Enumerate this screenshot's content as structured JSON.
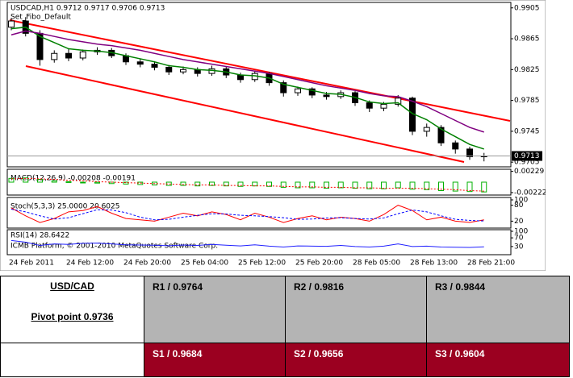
{
  "chart_data": [
    {
      "type": "candlestick",
      "title": "USDCAD,H1  0.9712 0.9717 0.9706 0.9713",
      "subtitle": "Set_Fibo_Default",
      "categories": [
        "24 Feb 2011",
        null,
        null,
        null,
        "24 Feb 12:00",
        null,
        null,
        null,
        "24 Feb 20:00",
        null,
        null,
        null,
        "25 Feb 04:00",
        null,
        null,
        null,
        "25 Feb 12:00",
        null,
        null,
        null,
        "25 Feb 20:00",
        null,
        null,
        null,
        "28 Feb 05:00",
        null,
        null,
        null,
        "28 Feb 13:00",
        null,
        null,
        null,
        "28 Feb 21:00",
        null
      ],
      "open": [
        0.988,
        0.9888,
        0.9872,
        0.9838,
        0.9846,
        0.984,
        0.9848,
        0.985,
        0.9843,
        0.9835,
        0.9832,
        0.9828,
        0.9822,
        0.9825,
        0.982,
        0.9826,
        0.9818,
        0.9812,
        0.982,
        0.9808,
        0.9795,
        0.98,
        0.9792,
        0.979,
        0.9795,
        0.9782,
        0.9775,
        0.978,
        0.9788,
        0.9745,
        0.975,
        0.973,
        0.9722,
        0.9712
      ],
      "high": [
        0.9892,
        0.9893,
        0.9876,
        0.985,
        0.9852,
        0.9851,
        0.9854,
        0.9853,
        0.9846,
        0.9839,
        0.9836,
        0.9831,
        0.9829,
        0.9828,
        0.983,
        0.9829,
        0.9821,
        0.9823,
        0.9822,
        0.9811,
        0.9803,
        0.9802,
        0.9796,
        0.9798,
        0.9797,
        0.9785,
        0.9783,
        0.9792,
        0.979,
        0.9755,
        0.9753,
        0.9733,
        0.9725,
        0.9717
      ],
      "low": [
        0.9876,
        0.9868,
        0.983,
        0.9834,
        0.9836,
        0.9837,
        0.9844,
        0.984,
        0.9831,
        0.9828,
        0.9824,
        0.9818,
        0.9819,
        0.9816,
        0.9817,
        0.9814,
        0.9808,
        0.9809,
        0.9804,
        0.979,
        0.9791,
        0.9788,
        0.9786,
        0.9787,
        0.9778,
        0.977,
        0.9771,
        0.9777,
        0.974,
        0.9738,
        0.9726,
        0.9716,
        0.9708,
        0.9706
      ],
      "close": [
        0.9888,
        0.9872,
        0.9838,
        0.9846,
        0.984,
        0.9848,
        0.985,
        0.9843,
        0.9835,
        0.9832,
        0.9828,
        0.9822,
        0.9825,
        0.982,
        0.9826,
        0.9818,
        0.9812,
        0.982,
        0.9808,
        0.9795,
        0.98,
        0.9792,
        0.979,
        0.9795,
        0.9782,
        0.9775,
        0.978,
        0.9788,
        0.9745,
        0.975,
        0.973,
        0.9722,
        0.9712,
        0.9713
      ],
      "overlays": [
        {
          "color": "#008000",
          "values": [
            0.9878,
            0.988,
            0.9868,
            0.986,
            0.9852,
            0.985,
            0.9849,
            0.9847,
            0.9843,
            0.9839,
            0.9835,
            0.983,
            0.9828,
            0.9825,
            0.9824,
            0.9822,
            0.9818,
            0.9817,
            0.9814,
            0.9806,
            0.9802,
            0.9798,
            0.9794,
            0.9793,
            0.9789,
            0.9783,
            0.9781,
            0.9782,
            0.9768,
            0.976,
            0.9748,
            0.9738,
            0.9728,
            0.9722
          ]
        },
        {
          "color": "#800080",
          "values": [
            0.987,
            0.9875,
            0.9872,
            0.9868,
            0.9864,
            0.9861,
            0.9858,
            0.9856,
            0.9853,
            0.985,
            0.9846,
            0.9842,
            0.9838,
            0.9835,
            0.9832,
            0.9829,
            0.9826,
            0.9823,
            0.982,
            0.9816,
            0.9812,
            0.9808,
            0.9804,
            0.9801,
            0.9798,
            0.9794,
            0.9791,
            0.979,
            0.9784,
            0.9777,
            0.9768,
            0.9759,
            0.975,
            0.9744
          ]
        }
      ],
      "last_price": 0.9713,
      "ylim": [
        0.9701,
        0.991
      ],
      "yticks": [
        0.9705,
        0.9745,
        0.9785,
        0.9825,
        0.9865,
        0.9905
      ]
    },
    {
      "type": "bar",
      "title": "MACD(12,26,9) -0.00208 -0.00191",
      "color": "#00b000",
      "values": [
        0.0008,
        0.0009,
        0.0006,
        0.0003,
        0.0001,
        -0.0001,
        -0.0002,
        -0.0003,
        -0.0004,
        -0.0005,
        -0.0006,
        -0.0007,
        -0.0007,
        -0.0008,
        -0.0007,
        -0.0008,
        -0.0009,
        -0.0008,
        -0.0009,
        -0.0011,
        -0.0012,
        -0.0012,
        -0.0013,
        -0.0012,
        -0.0013,
        -0.0014,
        -0.0014,
        -0.0012,
        -0.0015,
        -0.0016,
        -0.0018,
        -0.0019,
        -0.002,
        -0.00208
      ],
      "signal": {
        "color": "#ff0000",
        "values": [
          0.0007,
          0.0008,
          0.0007,
          0.0006,
          0.0004,
          0.0003,
          0.0001,
          0.0,
          -0.0001,
          -0.0002,
          -0.0003,
          -0.0004,
          -0.0005,
          -0.0006,
          -0.0006,
          -0.0007,
          -0.0007,
          -0.0008,
          -0.0008,
          -0.0009,
          -0.001,
          -0.001,
          -0.0011,
          -0.0011,
          -0.0012,
          -0.0012,
          -0.0013,
          -0.0013,
          -0.0013,
          -0.0014,
          -0.0015,
          -0.0016,
          -0.0018,
          -0.00191
        ]
      },
      "ylim": [
        -0.0024,
        0.0024
      ],
      "yticks": [
        0.00229,
        -0.00222
      ]
    },
    {
      "type": "line",
      "title": "Stoch(5,3,3) 25.0000 20.6025",
      "series": [
        {
          "color": "#ff0000",
          "values": [
            70,
            40,
            15,
            30,
            55,
            60,
            75,
            50,
            30,
            25,
            20,
            35,
            50,
            40,
            55,
            45,
            25,
            50,
            35,
            15,
            30,
            40,
            25,
            35,
            30,
            20,
            45,
            80,
            60,
            25,
            35,
            20,
            15,
            25
          ]
        },
        {
          "color": "#0000ff",
          "dashed": true,
          "values": [
            65,
            55,
            40,
            28,
            33,
            48,
            63,
            62,
            52,
            35,
            25,
            27,
            35,
            42,
            48,
            47,
            42,
            40,
            37,
            33,
            27,
            28,
            32,
            33,
            30,
            28,
            32,
            48,
            62,
            55,
            40,
            27,
            23,
            20.6025
          ]
        }
      ],
      "ylim": [
        0,
        100
      ],
      "yticks": [
        20,
        80,
        100
      ]
    },
    {
      "type": "line",
      "title": "RSI(14) 28.6422",
      "note": "ICMB Platform, © 2001-2010 MetaQuotes Software Corp.",
      "series": [
        {
          "color": "#2020ff",
          "values": [
            58,
            50,
            35,
            42,
            40,
            45,
            46,
            42,
            38,
            37,
            36,
            34,
            37,
            35,
            40,
            36,
            33,
            38,
            32,
            28,
            33,
            32,
            31,
            35,
            30,
            28,
            32,
            42,
            30,
            32,
            28,
            27,
            26,
            28.6422
          ]
        }
      ],
      "ylim": [
        0,
        100
      ],
      "yticks": [
        30,
        70,
        100
      ]
    }
  ],
  "table": {
    "pair": "USD/CAD",
    "pivot": "Pivot point 0.9736",
    "resistance": [
      "R1 / 0.9764",
      "R2 / 0.9816",
      "R3 / 0.9844"
    ],
    "support": [
      "S1 / 0.9684",
      "S2 / 0.9656",
      "S3 / 0.9604"
    ]
  }
}
